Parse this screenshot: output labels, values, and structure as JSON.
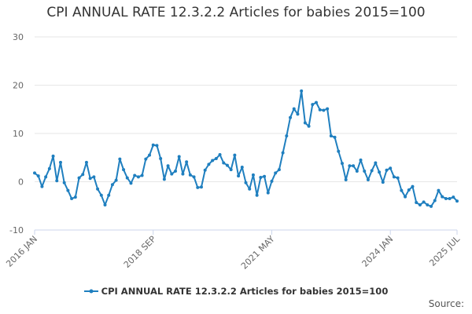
{
  "chart_data": {
    "type": "line",
    "title": "CPI ANNUAL RATE 12.3.2.2 Articles for babies 2015=100",
    "xlabel": "",
    "ylabel": "",
    "ylim": [
      -10,
      30
    ],
    "yticks": [
      -10,
      0,
      10,
      20,
      30
    ],
    "x_tick_labels": [
      "2016 JAN",
      "2018 SEP",
      "2021 MAY",
      "2024 JAN",
      "2025 JUL"
    ],
    "x_tick_indices": [
      0,
      32,
      64,
      96,
      114
    ],
    "grid": true,
    "legend": "bottom-center",
    "series": [
      {
        "name": "CPI ANNUAL RATE 12.3.2.2 Articles for babies 2015=100",
        "color": "#1f7fbf",
        "start": "2016 JAN",
        "frequency": "monthly",
        "values": [
          1.8,
          1.2,
          -1.0,
          1.0,
          2.7,
          5.3,
          0.2,
          4.0,
          -0.2,
          -1.8,
          -3.5,
          -3.2,
          0.8,
          1.5,
          4.0,
          0.7,
          1.0,
          -1.5,
          -2.8,
          -4.8,
          -2.8,
          -0.6,
          0.3,
          4.7,
          2.5,
          0.8,
          -0.3,
          1.3,
          1.0,
          1.3,
          4.7,
          5.5,
          7.6,
          7.5,
          4.8,
          0.5,
          3.3,
          1.6,
          2.2,
          5.2,
          1.6,
          4.1,
          1.4,
          1.0,
          -1.2,
          -1.1,
          2.4,
          3.6,
          4.4,
          4.8,
          5.6,
          3.9,
          3.4,
          2.5,
          5.5,
          1.2,
          3.0,
          -0.2,
          -1.5,
          1.4,
          -2.8,
          0.9,
          1.1,
          -2.3,
          0.1,
          1.8,
          2.5,
          6.0,
          9.5,
          13.3,
          15.1,
          14.0,
          18.8,
          12.2,
          11.5,
          16.0,
          16.4,
          14.9,
          14.8,
          15.1,
          9.5,
          9.2,
          6.3,
          3.8,
          0.4,
          3.3,
          3.3,
          2.2,
          4.5,
          2.2,
          0.4,
          2.3,
          3.9,
          2.0,
          -0.1,
          2.4,
          2.8,
          1.0,
          0.8,
          -1.8,
          -3.1,
          -1.7,
          -1.0,
          -4.3,
          -4.8,
          -4.2,
          -4.8,
          -5.1,
          -3.9,
          -1.8,
          -3.1,
          -3.5,
          -3.5,
          -3.2,
          -4.0
        ]
      }
    ]
  },
  "legend_label": "CPI ANNUAL RATE 12.3.2.2 Articles for babies 2015=100",
  "source_label": "Source:"
}
